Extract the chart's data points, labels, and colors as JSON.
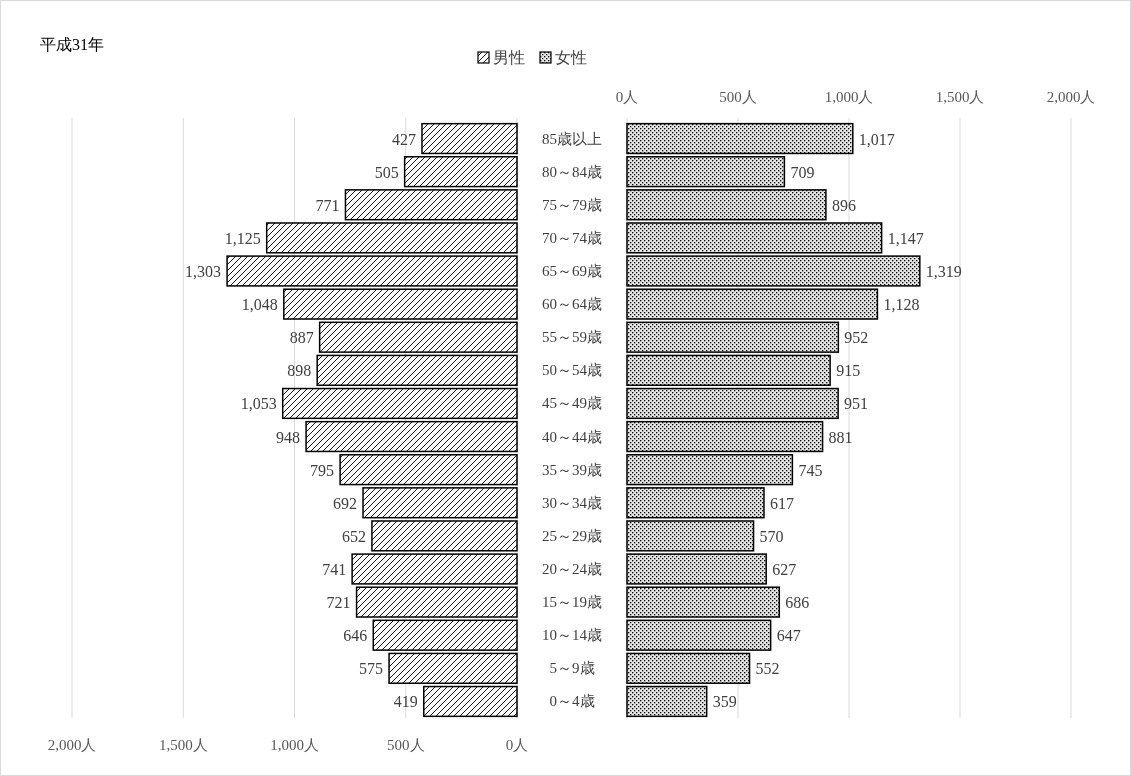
{
  "chart_data": [
    {
      "type": "bar",
      "orientation": "horizontal",
      "title": "平成31年",
      "categories": [
        "85歳以上",
        "80～84歳",
        "75～79歳",
        "70～74歳",
        "65～69歳",
        "60～64歳",
        "55～59歳",
        "50～54歳",
        "45～49歳",
        "40～44歳",
        "35～39歳",
        "30～34歳",
        "25～29歳",
        "20～24歳",
        "15～19歳",
        "10～14歳",
        "5～9歳",
        "0～4歳"
      ],
      "series": [
        {
          "name": "男性",
          "color": "#000000",
          "values": [
            427,
            505,
            771,
            1125,
            1303,
            1048,
            887,
            898,
            1053,
            948,
            795,
            692,
            652,
            741,
            721,
            646,
            575,
            419
          ],
          "value_labels": [
            "427",
            "505",
            "771",
            "1,125",
            "1,303",
            "1,048",
            "887",
            "898",
            "1,053",
            "948",
            "795",
            "692",
            "652",
            "741",
            "721",
            "646",
            "575",
            "419"
          ]
        }
      ],
      "xlim": [
        2000,
        0
      ],
      "xticks": [
        {
          "value": 2000,
          "label": "2,000人"
        },
        {
          "value": 1500,
          "label": "1,500人"
        },
        {
          "value": 1000,
          "label": "1,000人"
        },
        {
          "value": 500,
          "label": "500人"
        },
        {
          "value": 0,
          "label": "0人"
        }
      ],
      "grid": "x",
      "legend": "top"
    },
    {
      "type": "bar",
      "orientation": "horizontal",
      "categories": [
        null,
        null,
        null,
        null,
        null,
        null,
        null,
        null,
        null,
        null,
        null,
        null,
        null,
        null,
        null,
        null,
        null,
        null
      ],
      "series": [
        {
          "name": "女性",
          "color": "#000000",
          "values": [
            1017,
            709,
            896,
            1147,
            1319,
            1128,
            952,
            915,
            951,
            881,
            745,
            617,
            570,
            627,
            686,
            647,
            552,
            359
          ],
          "value_labels": [
            "1,017",
            "709",
            "896",
            "1,147",
            "1,319",
            "1,128",
            "952",
            "915",
            "951",
            "881",
            "745",
            "617",
            "570",
            "627",
            "686",
            "647",
            "552",
            "359"
          ]
        }
      ],
      "xlim": [
        0,
        2000
      ],
      "xticks": [
        {
          "value": 0,
          "label": "0人"
        },
        {
          "value": 500,
          "label": "500人"
        },
        {
          "value": 1000,
          "label": "1,000人"
        },
        {
          "value": 1500,
          "label": "1,500人"
        },
        {
          "value": 2000,
          "label": "2,000人"
        }
      ],
      "grid": "x",
      "legend": "top"
    }
  ]
}
